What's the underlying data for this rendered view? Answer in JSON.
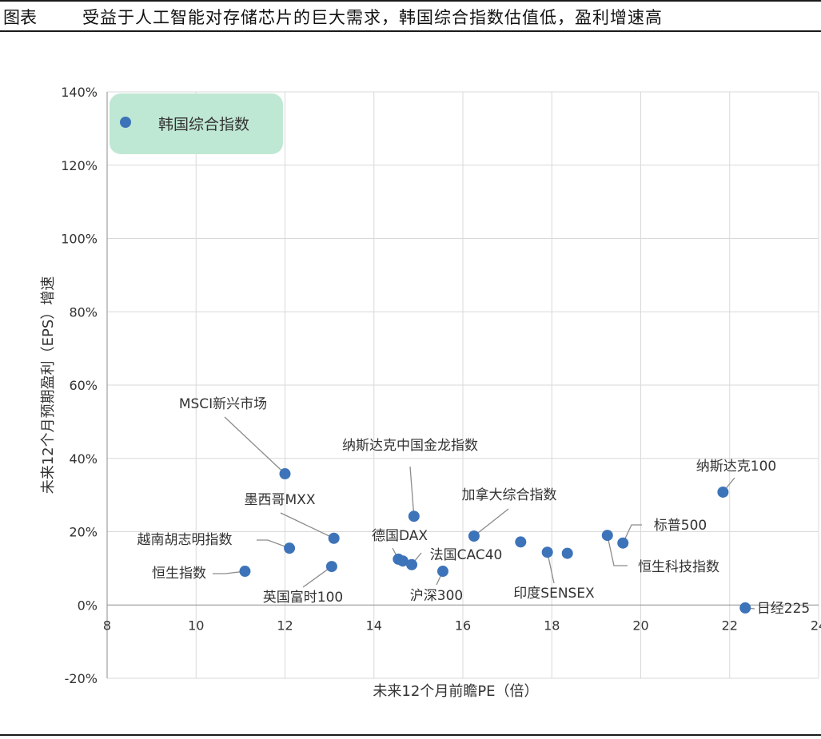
{
  "header": {
    "label": "图表",
    "title": "受益于人工智能对存储芯片的巨大需求，韩国综合指数估值低，盈利增速高"
  },
  "colors": {
    "point": "#3d73b9",
    "legend_bg": "#bfe8d4",
    "grid": "#d9d9d9",
    "axis": "#8c8c8c",
    "leader": "#8c8c8c",
    "text": "#333333",
    "header_rule": "#1a1a1a"
  },
  "chart_data": {
    "type": "scatter",
    "title": "",
    "xlabel": "未来12个月前瞻PE（倍）",
    "ylabel": "未来12个月预期盈利（EPS）增速",
    "xlim": [
      8,
      24
    ],
    "ylim": [
      -20,
      140
    ],
    "x_ticks": [
      "8",
      "10",
      "12",
      "14",
      "16",
      "18",
      "20",
      "22",
      "24"
    ],
    "y_ticks": [
      "-20%",
      "0%",
      "20%",
      "40%",
      "60%",
      "80%",
      "100%",
      "120%",
      "140%"
    ],
    "grid": true,
    "legend": {
      "position": "top-left",
      "entries": [
        "韩国综合指数"
      ]
    },
    "points": [
      {
        "label": "MSCI新兴市场",
        "x": 12.0,
        "y": 35.8
      },
      {
        "label": "纳斯达克中国金龙指数",
        "x": 14.9,
        "y": 24.2
      },
      {
        "label": "墨西哥MXX",
        "x": 13.1,
        "y": 18.2
      },
      {
        "label": "越南胡志明指数",
        "x": 12.1,
        "y": 15.5
      },
      {
        "label": "恒生指数",
        "x": 11.1,
        "y": 9.2
      },
      {
        "label": "英国富时100",
        "x": 13.05,
        "y": 10.5
      },
      {
        "label": "德国DAX",
        "x": 14.55,
        "y": 12.5
      },
      {
        "label": "",
        "x": 14.65,
        "y": 12.0
      },
      {
        "label": "法国CAC40",
        "x": 14.85,
        "y": 11.0
      },
      {
        "label": "沪深300",
        "x": 15.55,
        "y": 9.2
      },
      {
        "label": "加拿大综合指数",
        "x": 16.25,
        "y": 18.8
      },
      {
        "label": "",
        "x": 17.3,
        "y": 17.2
      },
      {
        "label": "印度SENSEX",
        "x": 17.9,
        "y": 14.4
      },
      {
        "label": "",
        "x": 18.35,
        "y": 14.1
      },
      {
        "label": "标普500",
        "x": 19.6,
        "y": 16.9
      },
      {
        "label": "恒生科技指数",
        "x": 19.25,
        "y": 19.0
      },
      {
        "label": "纳斯达克100",
        "x": 21.85,
        "y": 30.8
      },
      {
        "label": "日经225",
        "x": 22.35,
        "y": -0.8
      }
    ]
  }
}
